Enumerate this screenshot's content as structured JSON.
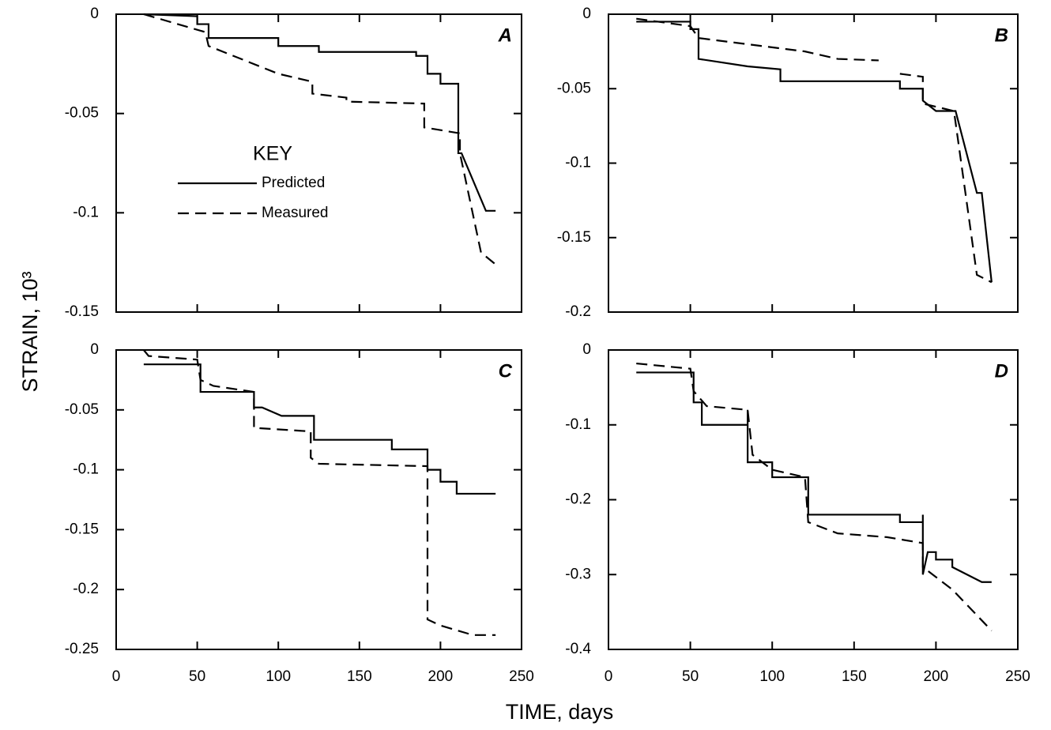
{
  "xlabel": "TIME, days",
  "ylabel": "STRAIN, 10³",
  "chart_data": [
    {
      "type": "line",
      "label": "A",
      "legend_title": "KEY",
      "legend": "center-left",
      "xlim": [
        0,
        250
      ],
      "ylim": [
        -0.15,
        0
      ],
      "xticks": [
        0,
        50,
        100,
        150,
        200,
        250
      ],
      "yticks": [
        0,
        -0.05,
        -0.1,
        -0.15
      ],
      "xtick_labels": false,
      "series": [
        {
          "name": "Predicted",
          "color": "#000000",
          "linestyle": "solid",
          "x": [
            17,
            50,
            50,
            57,
            57,
            100,
            100,
            125,
            125,
            185,
            185,
            192,
            192,
            200,
            200,
            211,
            211,
            213,
            228,
            234
          ],
          "values": [
            0,
            -0.001,
            -0.005,
            -0.005,
            -0.012,
            -0.012,
            -0.016,
            -0.016,
            -0.019,
            -0.019,
            -0.021,
            -0.021,
            -0.03,
            -0.03,
            -0.035,
            -0.035,
            -0.07,
            -0.07,
            -0.099,
            -0.099
          ]
        },
        {
          "name": "Measured",
          "color": "#000000",
          "linestyle": "dashed",
          "x": [
            17,
            55,
            57,
            100,
            121,
            121,
            142,
            142,
            190,
            190,
            212,
            212,
            225,
            234
          ],
          "values": [
            0,
            -0.009,
            -0.016,
            -0.03,
            -0.034,
            -0.04,
            -0.042,
            -0.044,
            -0.045,
            -0.057,
            -0.06,
            -0.07,
            -0.12,
            -0.126
          ]
        }
      ]
    },
    {
      "type": "line",
      "label": "B",
      "xlim": [
        0,
        250
      ],
      "ylim": [
        -0.2,
        0
      ],
      "xticks": [
        0,
        50,
        100,
        150,
        200,
        250
      ],
      "yticks": [
        0,
        -0.05,
        -0.1,
        -0.15,
        -0.2
      ],
      "xtick_labels": false,
      "series": [
        {
          "color": "#000000",
          "linestyle": "solid",
          "x": [
            17,
            50,
            50,
            55,
            55,
            85,
            105,
            105,
            178,
            178,
            192,
            192,
            200,
            212,
            225,
            228,
            234
          ],
          "values": [
            -0.005,
            -0.005,
            -0.01,
            -0.01,
            -0.03,
            -0.035,
            -0.037,
            -0.045,
            -0.045,
            -0.05,
            -0.05,
            -0.058,
            -0.065,
            -0.065,
            -0.12,
            -0.12,
            -0.18
          ]
        },
        {
          "color": "#000000",
          "linestyle": "dashed",
          "x": [
            17,
            50,
            55,
            120,
            140,
            165,
            null,
            178,
            192,
            192,
            211,
            225,
            234
          ],
          "values": [
            -0.003,
            -0.008,
            -0.016,
            -0.025,
            -0.03,
            -0.031,
            null,
            -0.04,
            -0.042,
            -0.06,
            -0.065,
            -0.175,
            -0.18
          ]
        }
      ]
    },
    {
      "type": "line",
      "label": "C",
      "xlim": [
        0,
        250
      ],
      "ylim": [
        -0.25,
        0
      ],
      "xticks": [
        0,
        50,
        100,
        150,
        200,
        250
      ],
      "yticks": [
        0,
        -0.05,
        -0.1,
        -0.15,
        -0.2,
        -0.25
      ],
      "xtick_labels": true,
      "series": [
        {
          "color": "#000000",
          "linestyle": "solid",
          "x": [
            17,
            52,
            52,
            85,
            85,
            90,
            102,
            122,
            122,
            170,
            170,
            192,
            192,
            200,
            200,
            210,
            210,
            234
          ],
          "values": [
            -0.012,
            -0.012,
            -0.035,
            -0.035,
            -0.048,
            -0.048,
            -0.055,
            -0.055,
            -0.075,
            -0.075,
            -0.083,
            -0.083,
            -0.1,
            -0.1,
            -0.11,
            -0.11,
            -0.12,
            -0.12
          ]
        },
        {
          "color": "#000000",
          "linestyle": "dashed",
          "x": [
            17,
            20,
            50,
            52,
            60,
            85,
            85,
            120,
            120,
            125,
            192,
            192,
            200,
            220,
            234
          ],
          "values": [
            0,
            -0.005,
            -0.008,
            -0.025,
            -0.03,
            -0.035,
            -0.065,
            -0.068,
            -0.09,
            -0.095,
            -0.097,
            -0.225,
            -0.23,
            -0.238,
            -0.238
          ]
        }
      ]
    },
    {
      "type": "line",
      "label": "D",
      "xlim": [
        0,
        250
      ],
      "ylim": [
        -0.4,
        0
      ],
      "xticks": [
        0,
        50,
        100,
        150,
        200,
        250
      ],
      "yticks": [
        0,
        -0.1,
        -0.2,
        -0.3,
        -0.4
      ],
      "xtick_labels": true,
      "series": [
        {
          "color": "#000000",
          "linestyle": "solid",
          "x": [
            17,
            52,
            52,
            57,
            57,
            85,
            85,
            85,
            100,
            100,
            122,
            122,
            178,
            178,
            192,
            192,
            192,
            195,
            200,
            200,
            210,
            210,
            228,
            234
          ],
          "values": [
            -0.03,
            -0.03,
            -0.07,
            -0.07,
            -0.1,
            -0.1,
            -0.08,
            -0.15,
            -0.15,
            -0.17,
            -0.17,
            -0.22,
            -0.22,
            -0.23,
            -0.23,
            -0.22,
            -0.3,
            -0.27,
            -0.27,
            -0.28,
            -0.28,
            -0.29,
            -0.31,
            -0.31
          ]
        },
        {
          "color": "#000000",
          "linestyle": "dashed",
          "x": [
            17,
            50,
            52,
            60,
            85,
            88,
            100,
            120,
            122,
            140,
            170,
            192,
            192,
            210,
            234
          ],
          "values": [
            -0.018,
            -0.025,
            -0.055,
            -0.075,
            -0.08,
            -0.14,
            -0.16,
            -0.17,
            -0.23,
            -0.245,
            -0.25,
            -0.258,
            -0.29,
            -0.32,
            -0.375
          ]
        }
      ]
    }
  ]
}
